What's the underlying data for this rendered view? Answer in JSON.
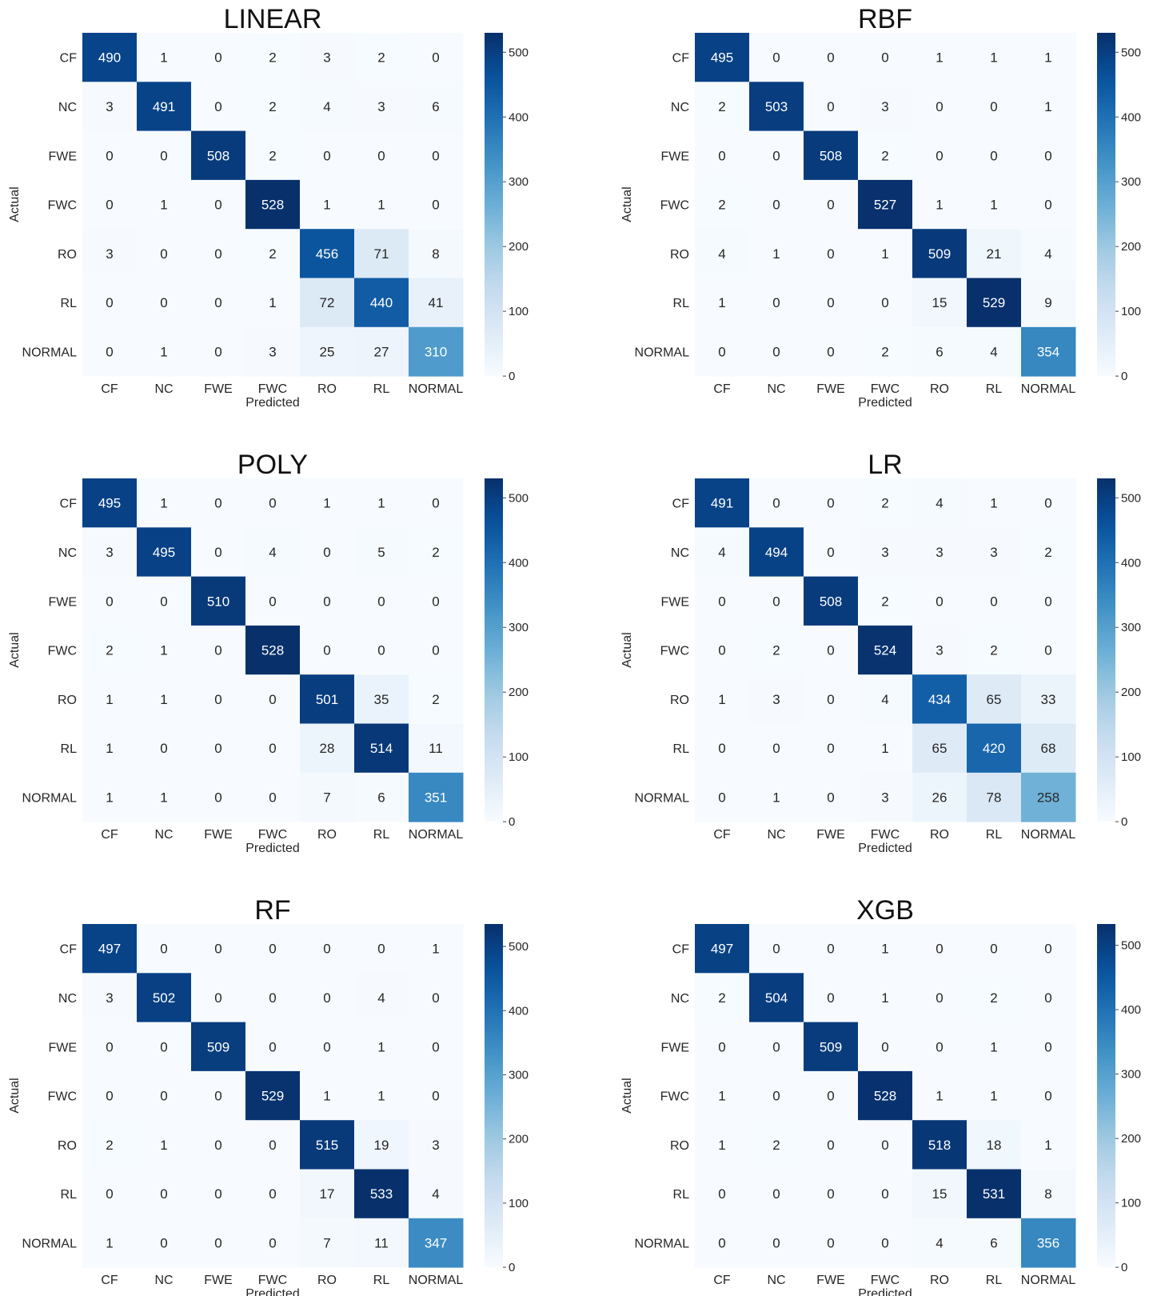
{
  "chart_data": [
    {
      "type": "heatmap",
      "title": "LINEAR",
      "xlabel": "Predicted",
      "ylabel": "Actual",
      "x_categories": [
        "CF",
        "NC",
        "FWE",
        "FWC",
        "RO",
        "RL",
        "NORMAL"
      ],
      "y_categories": [
        "CF",
        "NC",
        "FWE",
        "FWC",
        "RO",
        "RL",
        "NORMAL"
      ],
      "values": [
        [
          490,
          1,
          0,
          2,
          3,
          2,
          0
        ],
        [
          3,
          491,
          0,
          2,
          4,
          3,
          6
        ],
        [
          0,
          0,
          508,
          2,
          0,
          0,
          0
        ],
        [
          0,
          1,
          0,
          528,
          1,
          1,
          0
        ],
        [
          3,
          0,
          0,
          2,
          456,
          71,
          8
        ],
        [
          0,
          0,
          0,
          1,
          72,
          440,
          41
        ],
        [
          0,
          1,
          0,
          3,
          25,
          27,
          310
        ]
      ],
      "colorbar": {
        "min": 0,
        "max": 530,
        "ticks": [
          0,
          100,
          200,
          300,
          400,
          500
        ],
        "colormap": "Blues"
      }
    },
    {
      "type": "heatmap",
      "title": "RBF",
      "xlabel": "Predicted",
      "ylabel": "Actual",
      "x_categories": [
        "CF",
        "NC",
        "FWE",
        "FWC",
        "RO",
        "RL",
        "NORMAL"
      ],
      "y_categories": [
        "CF",
        "NC",
        "FWE",
        "FWC",
        "RO",
        "RL",
        "NORMAL"
      ],
      "values": [
        [
          495,
          0,
          0,
          0,
          1,
          1,
          1
        ],
        [
          2,
          503,
          0,
          3,
          0,
          0,
          1
        ],
        [
          0,
          0,
          508,
          2,
          0,
          0,
          0
        ],
        [
          2,
          0,
          0,
          527,
          1,
          1,
          0
        ],
        [
          4,
          1,
          0,
          1,
          509,
          21,
          4
        ],
        [
          1,
          0,
          0,
          0,
          15,
          529,
          9
        ],
        [
          0,
          0,
          0,
          2,
          6,
          4,
          354
        ]
      ],
      "colorbar": {
        "min": 0,
        "max": 530,
        "ticks": [
          0,
          100,
          200,
          300,
          400,
          500
        ],
        "colormap": "Blues"
      }
    },
    {
      "type": "heatmap",
      "title": "POLY",
      "xlabel": "Predicted",
      "ylabel": "Actual",
      "x_categories": [
        "CF",
        "NC",
        "FWE",
        "FWC",
        "RO",
        "RL",
        "NORMAL"
      ],
      "y_categories": [
        "CF",
        "NC",
        "FWE",
        "FWC",
        "RO",
        "RL",
        "NORMAL"
      ],
      "values": [
        [
          495,
          1,
          0,
          0,
          1,
          1,
          0
        ],
        [
          3,
          495,
          0,
          4,
          0,
          5,
          2
        ],
        [
          0,
          0,
          510,
          0,
          0,
          0,
          0
        ],
        [
          2,
          1,
          0,
          528,
          0,
          0,
          0
        ],
        [
          1,
          1,
          0,
          0,
          501,
          35,
          2
        ],
        [
          1,
          0,
          0,
          0,
          28,
          514,
          11
        ],
        [
          1,
          1,
          0,
          0,
          7,
          6,
          351
        ]
      ],
      "colorbar": {
        "min": 0,
        "max": 530,
        "ticks": [
          0,
          100,
          200,
          300,
          400,
          500
        ],
        "colormap": "Blues"
      }
    },
    {
      "type": "heatmap",
      "title": "LR",
      "xlabel": "Predicted",
      "ylabel": "Actual",
      "x_categories": [
        "CF",
        "NC",
        "FWE",
        "FWC",
        "RO",
        "RL",
        "NORMAL"
      ],
      "y_categories": [
        "CF",
        "NC",
        "FWE",
        "FWC",
        "RO",
        "RL",
        "NORMAL"
      ],
      "values": [
        [
          491,
          0,
          0,
          2,
          4,
          1,
          0
        ],
        [
          4,
          494,
          0,
          3,
          3,
          3,
          2
        ],
        [
          0,
          0,
          508,
          2,
          0,
          0,
          0
        ],
        [
          0,
          2,
          0,
          524,
          3,
          2,
          0
        ],
        [
          1,
          3,
          0,
          4,
          434,
          65,
          33
        ],
        [
          0,
          0,
          0,
          1,
          65,
          420,
          68
        ],
        [
          0,
          1,
          0,
          3,
          26,
          78,
          258
        ]
      ],
      "colorbar": {
        "min": 0,
        "max": 530,
        "ticks": [
          0,
          100,
          200,
          300,
          400,
          500
        ],
        "colormap": "Blues"
      }
    },
    {
      "type": "heatmap",
      "title": "RF",
      "xlabel": "Predicted",
      "ylabel": "Actual",
      "x_categories": [
        "CF",
        "NC",
        "FWE",
        "FWC",
        "RO",
        "RL",
        "NORMAL"
      ],
      "y_categories": [
        "CF",
        "NC",
        "FWE",
        "FWC",
        "RO",
        "RL",
        "NORMAL"
      ],
      "values": [
        [
          497,
          0,
          0,
          0,
          0,
          0,
          1
        ],
        [
          3,
          502,
          0,
          0,
          0,
          4,
          0
        ],
        [
          0,
          0,
          509,
          0,
          0,
          1,
          0
        ],
        [
          0,
          0,
          0,
          529,
          1,
          1,
          0
        ],
        [
          2,
          1,
          0,
          0,
          515,
          19,
          3
        ],
        [
          0,
          0,
          0,
          0,
          17,
          533,
          4
        ],
        [
          1,
          0,
          0,
          0,
          7,
          11,
          347
        ]
      ],
      "colorbar": {
        "min": 0,
        "max": 535,
        "ticks": [
          0,
          100,
          200,
          300,
          400,
          500
        ],
        "colormap": "Blues"
      }
    },
    {
      "type": "heatmap",
      "title": "XGB",
      "xlabel": "Predicted",
      "ylabel": "Actual",
      "x_categories": [
        "CF",
        "NC",
        "FWE",
        "FWC",
        "RO",
        "RL",
        "NORMAL"
      ],
      "y_categories": [
        "CF",
        "NC",
        "FWE",
        "FWC",
        "RO",
        "RL",
        "NORMAL"
      ],
      "values": [
        [
          497,
          0,
          0,
          1,
          0,
          0,
          0
        ],
        [
          2,
          504,
          0,
          1,
          0,
          2,
          0
        ],
        [
          0,
          0,
          509,
          0,
          0,
          1,
          0
        ],
        [
          1,
          0,
          0,
          528,
          1,
          1,
          0
        ],
        [
          1,
          2,
          0,
          0,
          518,
          18,
          1
        ],
        [
          0,
          0,
          0,
          0,
          15,
          531,
          8
        ],
        [
          0,
          0,
          0,
          0,
          4,
          6,
          356
        ]
      ],
      "colorbar": {
        "min": 0,
        "max": 533,
        "ticks": [
          0,
          100,
          200,
          300,
          400,
          500
        ],
        "colormap": "Blues"
      }
    }
  ]
}
